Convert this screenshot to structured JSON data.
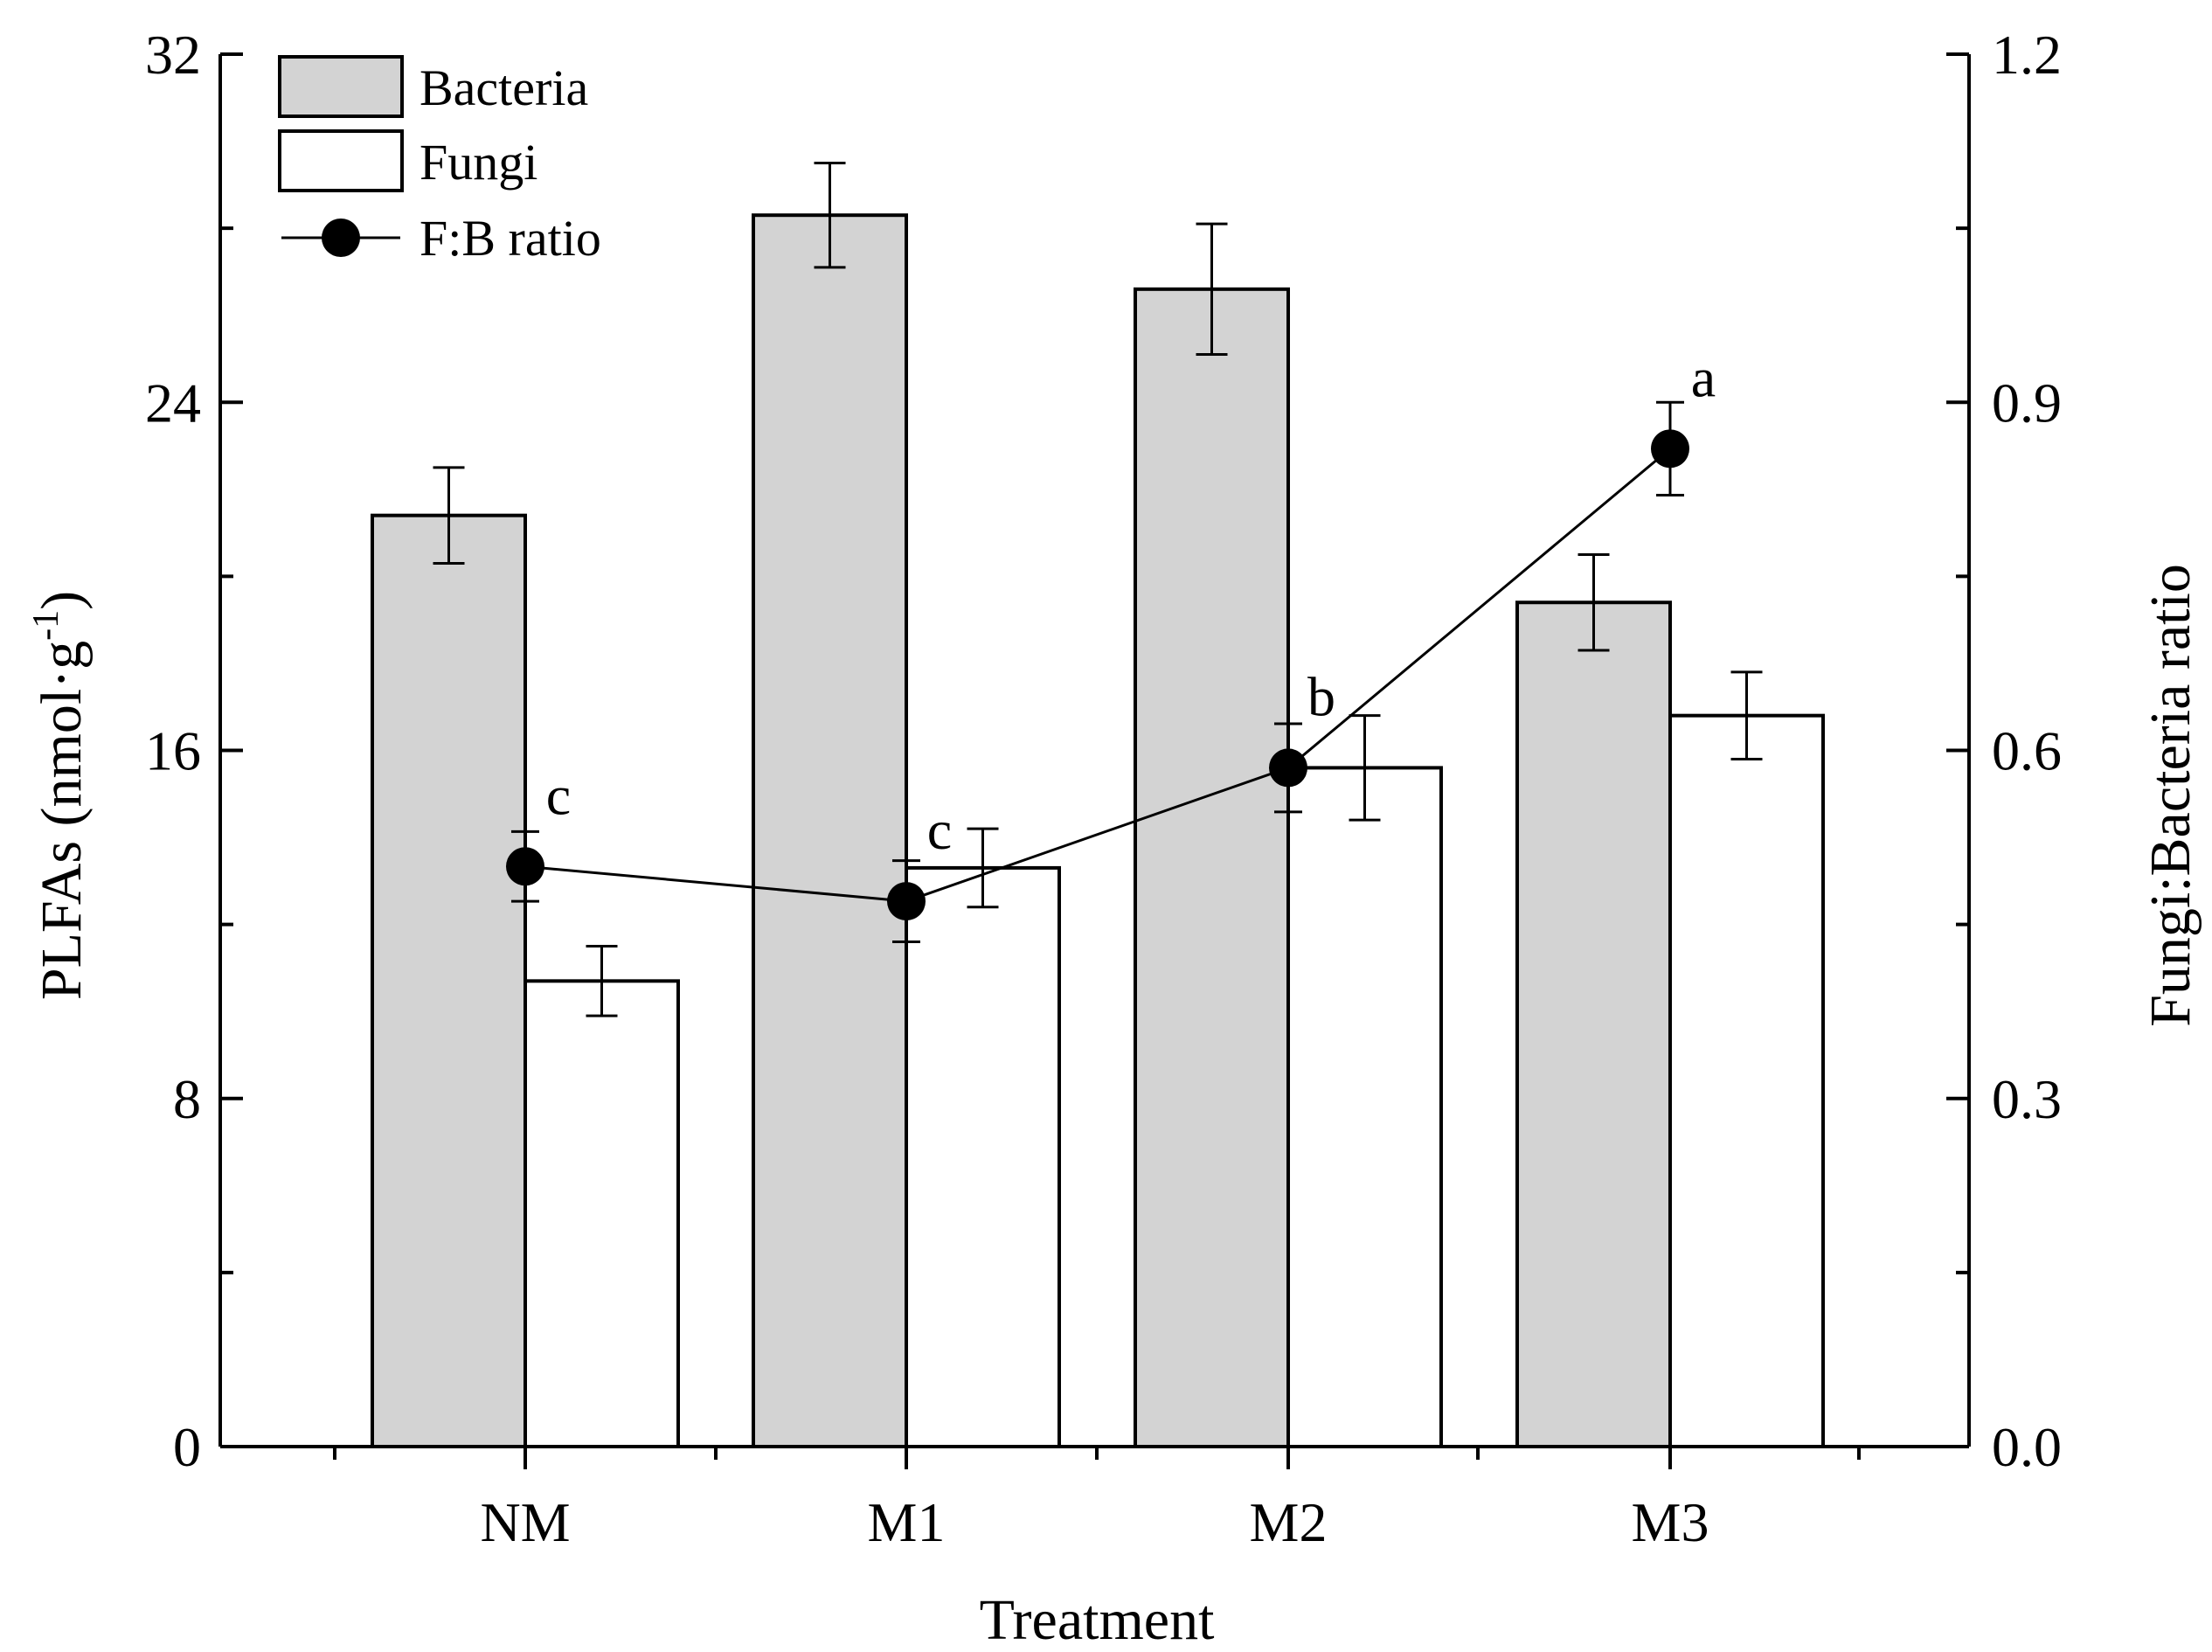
{
  "chart_data": {
    "type": "bar",
    "title": "",
    "categories": [
      "NM",
      "M1",
      "M2",
      "M3"
    ],
    "xlabel": "Treatment",
    "ylabel": "PLFAs (nmol·g",
    "ylabel_superscript": "-1",
    "ylabel_close": ")",
    "y2label": "Fungi:Bacteria ratio",
    "ylim": [
      0,
      32
    ],
    "y2lim": [
      0,
      1.2
    ],
    "yticks": [
      "0",
      "8",
      "16",
      "24",
      "32"
    ],
    "y2ticks": [
      "0.0",
      "0.3",
      "0.6",
      "0.9",
      "1.2"
    ],
    "series": [
      {
        "name": "Bacteria",
        "kind": "bar",
        "color": "#d3d3d3",
        "values": [
          21.4,
          28.3,
          26.6,
          19.4
        ],
        "errors": [
          1.1,
          1.2,
          1.5,
          1.1
        ]
      },
      {
        "name": "Fungi",
        "kind": "bar",
        "color": "#ffffff",
        "values": [
          10.7,
          13.3,
          15.6,
          16.8
        ],
        "errors": [
          0.8,
          0.9,
          1.2,
          1.0
        ]
      },
      {
        "name": "F:B ratio",
        "kind": "line",
        "axis": "right",
        "color": "#000000",
        "values": [
          0.5,
          0.47,
          0.585,
          0.86
        ],
        "errors": [
          0.03,
          0.035,
          0.038,
          0.04
        ],
        "significance": [
          "c",
          "c",
          "b",
          "a"
        ]
      }
    ],
    "legend_position": "top-left"
  }
}
